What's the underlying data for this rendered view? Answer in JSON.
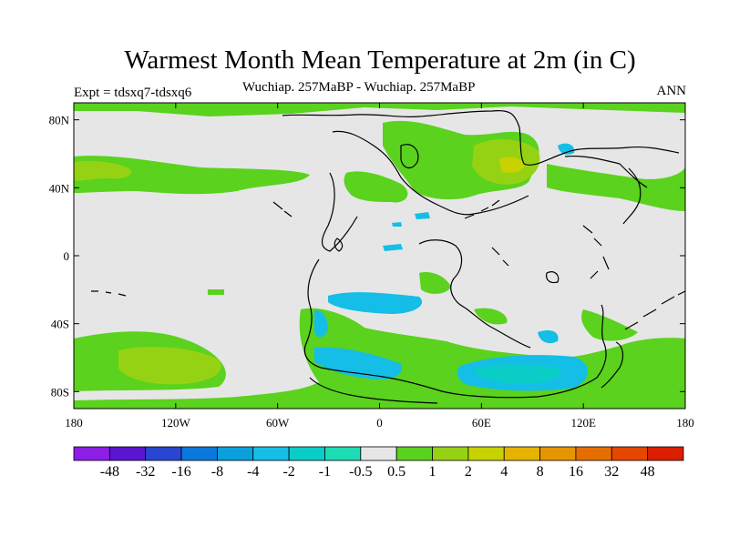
{
  "title": "Warmest Month Mean Temperature at 2m (in C)",
  "subtitle": "Wuchiap. 257MaBP - Wuchiap. 257MaBP",
  "left_label": "Expt = tdsxq7-tdsxq6",
  "right_label": "ANN",
  "map": {
    "lon_range": [
      -180,
      180
    ],
    "lat_range": [
      -90,
      90
    ],
    "background_color": "#e6e6e6",
    "x_ticks": [
      {
        "value": -180,
        "label": "180"
      },
      {
        "value": -120,
        "label": "120W"
      },
      {
        "value": -60,
        "label": "60W"
      },
      {
        "value": 0,
        "label": "0"
      },
      {
        "value": 60,
        "label": "60E"
      },
      {
        "value": 120,
        "label": "120E"
      },
      {
        "value": 180,
        "label": "180"
      }
    ],
    "y_ticks": [
      {
        "value": 80,
        "label": "80N"
      },
      {
        "value": 40,
        "label": "40N"
      },
      {
        "value": 0,
        "label": "0"
      },
      {
        "value": -40,
        "label": "40S"
      },
      {
        "value": -80,
        "label": "80S"
      }
    ]
  },
  "colorbar": {
    "colors": [
      "#8c1ee6",
      "#5a14d2",
      "#2846d2",
      "#0a78dc",
      "#0aa0dc",
      "#14bee6",
      "#0acdc8",
      "#1edcb4",
      "#e6e6e6",
      "#5ad21e",
      "#96d214",
      "#c8d200",
      "#e6b400",
      "#e69600",
      "#e66e00",
      "#e64600",
      "#dc1e00"
    ],
    "labels": [
      "-48",
      "-32",
      "-16",
      "-8",
      "-4",
      "-2",
      "-1",
      "-0.5",
      "0.5",
      "1",
      "2",
      "4",
      "8",
      "16",
      "32",
      "48"
    ]
  }
}
